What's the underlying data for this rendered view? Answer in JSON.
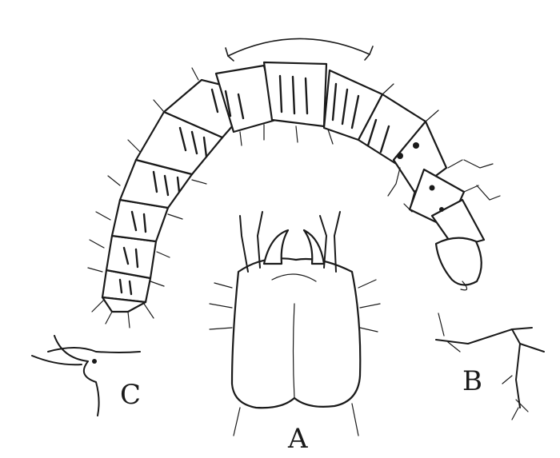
{
  "figure": {
    "labels": {
      "A": "A",
      "B": "B",
      "C": "C"
    },
    "ink_color": "#1a1a1a",
    "paper_color": "#ffffff"
  }
}
